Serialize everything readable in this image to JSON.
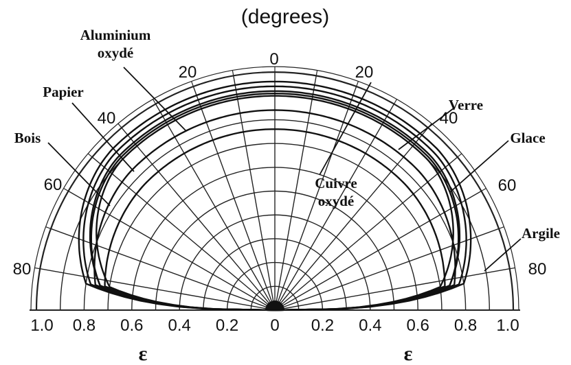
{
  "chart_data": {
    "type": "polar-semicircle",
    "angle_unit_label": "(degrees)",
    "radial_label": "ε",
    "angle_range": [
      0,
      90
    ],
    "radial_range": [
      0,
      1.0
    ],
    "angle_ticks_left": [
      "0",
      "20",
      "40",
      "60",
      "80"
    ],
    "angle_ticks_right": [
      "20",
      "40",
      "60",
      "80"
    ],
    "radial_ticks": [
      "1.0",
      "0.8",
      "0.6",
      "0.4",
      "0.2",
      "0",
      "0.2",
      "0.4",
      "0.6",
      "0.8",
      "1.0"
    ],
    "grid": true,
    "series": [
      {
        "name": "Bois",
        "side": "left",
        "normal_emissivity": 0.9,
        "edge_emissivity": 0.7
      },
      {
        "name": "Papier",
        "side": "left",
        "normal_emissivity": 0.92,
        "edge_emissivity": 0.74
      },
      {
        "name": "Aluminium oxydé",
        "side": "left",
        "normal_emissivity": 0.84,
        "edge_emissivity": 0.76
      },
      {
        "name": "Verre",
        "side": "right",
        "normal_emissivity": 0.94,
        "edge_emissivity": 0.78
      },
      {
        "name": "Glace",
        "side": "right",
        "normal_emissivity": 0.96,
        "edge_emissivity": 0.8
      },
      {
        "name": "Argile",
        "side": "right",
        "normal_emissivity": 0.91,
        "edge_emissivity": 0.74
      },
      {
        "name": "Cuivre oxydé",
        "side": "right",
        "normal_emissivity": 0.76,
        "edge_emissivity": 0.72
      }
    ]
  }
}
